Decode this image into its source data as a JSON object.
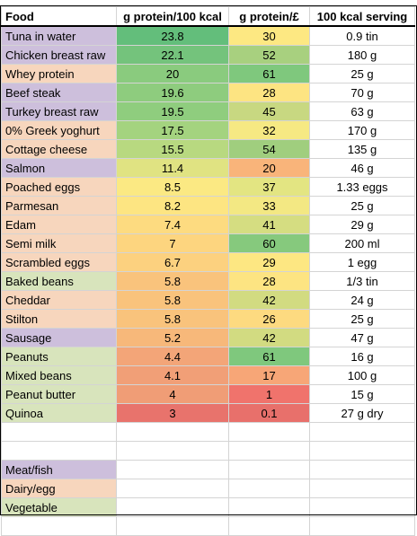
{
  "headers": [
    "Food",
    "g protein/100 kcal",
    "g protein/£",
    "100 kcal serving"
  ],
  "rows": [
    {
      "food": "Tuna in water",
      "per_kcal": "23.8",
      "per_pound": "30",
      "serving": "0.9 tin",
      "category_color": "#cdbfdc",
      "kcal_color": "#63be7b",
      "pound_color": "#fde882"
    },
    {
      "food": "Chicken breast raw",
      "per_kcal": "22.1",
      "per_pound": "52",
      "serving": "180 g",
      "category_color": "#cdbfdc",
      "kcal_color": "#74c37c",
      "pound_color": "#a8d07f"
    },
    {
      "food": "Whey protein",
      "per_kcal": "20",
      "per_pound": "61",
      "serving": "25 g",
      "category_color": "#f7d6bd",
      "kcal_color": "#8acb7e",
      "pound_color": "#7fc87d"
    },
    {
      "food": "Beef steak",
      "per_kcal": "19.6",
      "per_pound": "28",
      "serving": "70 g",
      "category_color": "#cdbfdc",
      "kcal_color": "#8ecc7e",
      "pound_color": "#fde482"
    },
    {
      "food": "Turkey breast raw",
      "per_kcal": "19.5",
      "per_pound": "45",
      "serving": "63 g",
      "category_color": "#cdbfdc",
      "kcal_color": "#8fcd7e",
      "pound_color": "#c8d881"
    },
    {
      "food": "0% Greek yoghurt",
      "per_kcal": "17.5",
      "per_pound": "32",
      "serving": "170 g",
      "category_color": "#f7d6bd",
      "kcal_color": "#a4d37f",
      "pound_color": "#f6e983"
    },
    {
      "food": "Cottage cheese",
      "per_kcal": "15.5",
      "per_pound": "54",
      "serving": "135 g",
      "category_color": "#f7d6bd",
      "kcal_color": "#b8d980",
      "pound_color": "#a0ce7e"
    },
    {
      "food": "Salmon",
      "per_kcal": "11.4",
      "per_pound": "20",
      "serving": "46 g",
      "category_color": "#cdbfdc",
      "kcal_color": "#e0e382",
      "pound_color": "#f9b47a"
    },
    {
      "food": "Poached eggs",
      "per_kcal": "8.5",
      "per_pound": "37",
      "serving": "1.33 eggs",
      "category_color": "#f7d6bd",
      "kcal_color": "#fbe983",
      "pound_color": "#e3e582"
    },
    {
      "food": "Parmesan",
      "per_kcal": "8.2",
      "per_pound": "33",
      "serving": "25 g",
      "category_color": "#f7d6bd",
      "kcal_color": "#fde582",
      "pound_color": "#f3e883"
    },
    {
      "food": "Edam",
      "per_kcal": "7.4",
      "per_pound": "41",
      "serving": "29 g",
      "category_color": "#f7d6bd",
      "kcal_color": "#fddb80",
      "pound_color": "#d5dd81"
    },
    {
      "food": "Semi milk",
      "per_kcal": "7",
      "per_pound": "60",
      "serving": "200 ml",
      "category_color": "#f7d6bd",
      "kcal_color": "#fdd57f",
      "pound_color": "#86c97d"
    },
    {
      "food": "Scrambled eggs",
      "per_kcal": "6.7",
      "per_pound": "29",
      "serving": "1 egg",
      "category_color": "#f7d6bd",
      "kcal_color": "#fcd17f",
      "pound_color": "#fde782"
    },
    {
      "food": "Baked beans",
      "per_kcal": "5.8",
      "per_pound": "28",
      "serving": "1/3 tin",
      "category_color": "#d8e4bc",
      "kcal_color": "#f9c37c",
      "pound_color": "#fde482"
    },
    {
      "food": "Cheddar",
      "per_kcal": "5.8",
      "per_pound": "42",
      "serving": "24 g",
      "category_color": "#f7d6bd",
      "kcal_color": "#f9c37c",
      "pound_color": "#d2db81"
    },
    {
      "food": "Stilton",
      "per_kcal": "5.8",
      "per_pound": "26",
      "serving": "25 g",
      "category_color": "#f7d6bd",
      "kcal_color": "#f9c37c",
      "pound_color": "#fdda80"
    },
    {
      "food": "Sausage",
      "per_kcal": "5.2",
      "per_pound": "42",
      "serving": "47 g",
      "category_color": "#cdbfdc",
      "kcal_color": "#f7b87a",
      "pound_color": "#d2db81"
    },
    {
      "food": "Peanuts",
      "per_kcal": "4.4",
      "per_pound": "61",
      "serving": "16 g",
      "category_color": "#d8e4bc",
      "kcal_color": "#f3a578",
      "pound_color": "#7fc87d"
    },
    {
      "food": "Mixed beans",
      "per_kcal": "4.1",
      "per_pound": "17",
      "serving": "100 g",
      "category_color": "#d8e4bc",
      "kcal_color": "#f19f77",
      "pound_color": "#f7a677"
    },
    {
      "food": "Peanut butter",
      "per_kcal": "4",
      "per_pound": "1",
      "serving": "15 g",
      "category_color": "#d8e4bc",
      "kcal_color": "#f09d76",
      "pound_color": "#f0736c"
    },
    {
      "food": "Quinoa",
      "per_kcal": "3",
      "per_pound": "0.1",
      "serving": "27 g dry",
      "category_color": "#d8e4bc",
      "kcal_color": "#e8736c",
      "pound_color": "#e8706b"
    }
  ],
  "legend": [
    {
      "label": "Meat/fish",
      "color": "#cdbfdc"
    },
    {
      "label": "Dairy/egg",
      "color": "#f7d6bd"
    },
    {
      "label": "Vegetable",
      "color": "#d8e4bc"
    }
  ]
}
